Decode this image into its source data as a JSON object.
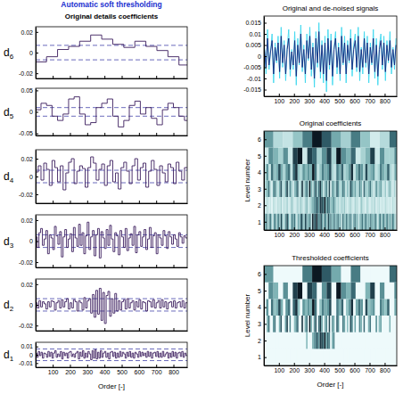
{
  "chart_data": [
    {
      "type": "step",
      "title": "Automatic soft thresholding",
      "subtitle": "Original details coefficients",
      "ylabel": "d6",
      "color": "#3b1d5e",
      "x_start": 0,
      "x_step": 64,
      "values": [
        -0.009,
        -0.004,
        0.003,
        0.006,
        0.011,
        0.017,
        0.013,
        0.008,
        0.005,
        0.011,
        0.006,
        0.002,
        -0.004,
        -0.012
      ],
      "threshold": 0.007,
      "xlim": [
        1,
        880
      ],
      "xticks": [
        100,
        200,
        300,
        400,
        500,
        600,
        700,
        800
      ],
      "ylim": [
        -0.025,
        0.025
      ],
      "yticks": [
        -0.02,
        0,
        0.02
      ],
      "tick_labels": "y"
    },
    {
      "type": "step",
      "ylabel": "d5",
      "color": "#3b1d5e",
      "x_start": 0,
      "x_step": 32,
      "values": [
        0.005,
        0.02,
        0.015,
        -0.01,
        -0.02,
        -0.005,
        0.03,
        0.035,
        -0.005,
        -0.03,
        -0.025,
        0.01,
        0.02,
        0.03,
        -0.01,
        -0.035,
        -0.02,
        0.015,
        0.025,
        -0.005,
        0.01,
        -0.015,
        -0.03,
        0.005,
        0.02,
        0.01,
        -0.01,
        -0.02
      ],
      "threshold": 0.01,
      "xlim": [
        1,
        880
      ],
      "xticks": [
        100,
        200,
        300,
        400,
        500,
        600,
        700,
        800
      ],
      "ylim": [
        -0.055,
        0.055
      ],
      "yticks": [
        -0.05,
        0,
        0.05
      ],
      "tick_labels": "y"
    },
    {
      "type": "step",
      "ylabel": "d4",
      "color": "#3b1d5e",
      "x_start": 0,
      "x_step": 16,
      "values": [
        0.005,
        0.012,
        -0.004,
        0.015,
        0.008,
        -0.01,
        0.018,
        0.01,
        -0.006,
        0.012,
        -0.015,
        0.004,
        0.016,
        0.02,
        -0.008,
        0.006,
        0.012,
        0.009,
        -0.012,
        0.01,
        0.022,
        0.015,
        -0.004,
        0.008,
        0.014,
        -0.01,
        0.012,
        0.018,
        -0.006,
        0.004,
        -0.014,
        0.01,
        0.016,
        0.006,
        -0.008,
        0.012,
        0.02,
        -0.004,
        0.01,
        0.015,
        -0.012,
        0.006,
        0.018,
        0.008,
        -0.01,
        0.012,
        0.004,
        -0.006,
        0.014,
        0.01,
        -0.008,
        0.016,
        0.006,
        -0.004,
        0.01
      ],
      "threshold": 0.007,
      "xlim": [
        1,
        880
      ],
      "xticks": [
        100,
        200,
        300,
        400,
        500,
        600,
        700,
        800
      ],
      "ylim": [
        -0.03,
        0.03
      ],
      "yticks": [
        -0.02,
        0,
        0.02
      ],
      "tick_labels": "y"
    },
    {
      "type": "step",
      "ylabel": "d3",
      "color": "#3b1d5e",
      "x_start": 0,
      "x_step": 10,
      "values": [
        0.004,
        -0.006,
        0.008,
        0.012,
        -0.004,
        0.002,
        0.01,
        -0.012,
        0.006,
        0.003,
        -0.008,
        0.014,
        0.005,
        -0.003,
        0.009,
        -0.015,
        0.004,
        0.011,
        -0.006,
        0.002,
        0.007,
        -0.01,
        0.013,
        0.003,
        -0.005,
        0.016,
        -0.004,
        0.008,
        -0.012,
        0.005,
        0.018,
        -0.008,
        0.004,
        0.01,
        -0.014,
        0.006,
        0.012,
        -0.016,
        0.009,
        0.003,
        -0.007,
        0.011,
        -0.004,
        0.015,
        0.002,
        -0.01,
        0.008,
        0.005,
        -0.013,
        0.01,
        0.004,
        -0.006,
        0.012,
        -0.009,
        0.003,
        0.007,
        -0.004,
        0.014,
        -0.011,
        0.006,
        0.009,
        -0.005,
        0.004,
        0.011,
        -0.008,
        0.002,
        0.013,
        -0.006,
        0.005,
        0.008,
        -0.012,
        0.006,
        0.003,
        -0.004,
        0.01,
        0.005,
        -0.007,
        0.009,
        0.004,
        -0.003,
        0.006,
        0.002,
        -0.005,
        0.008,
        0.004,
        -0.002,
        0.005,
        0.003
      ],
      "threshold": 0.006,
      "xlim": [
        1,
        880
      ],
      "xticks": [
        100,
        200,
        300,
        400,
        500,
        600,
        700,
        800
      ],
      "ylim": [
        -0.025,
        0.025
      ],
      "yticks": [
        -0.02,
        0,
        0.02
      ],
      "tick_labels": "y"
    },
    {
      "type": "step",
      "ylabel": "d2",
      "color": "#3b1d5e",
      "x_start": 0,
      "x_step": 10,
      "values": [
        0.002,
        -0.003,
        0.004,
        -0.002,
        0.003,
        0.001,
        -0.004,
        0.003,
        -0.002,
        0.004,
        0.003,
        -0.005,
        0.002,
        0.004,
        -0.003,
        0.005,
        -0.002,
        0.003,
        0.006,
        -0.004,
        0.002,
        -0.003,
        0.005,
        0.003,
        -0.006,
        0.004,
        0.002,
        -0.005,
        0.007,
        -0.003,
        0.004,
        0.006,
        -0.008,
        0.01,
        -0.012,
        0.014,
        -0.009,
        0.016,
        -0.015,
        0.012,
        -0.018,
        0.009,
        0.013,
        -0.011,
        0.006,
        -0.008,
        0.011,
        -0.006,
        0.004,
        -0.005,
        0.003,
        0.005,
        -0.004,
        0.006,
        -0.003,
        0.002,
        0.004,
        -0.005,
        0.003,
        -0.002,
        0.005,
        -0.004,
        0.003,
        0.002,
        -0.006,
        0.004,
        0.003,
        -0.002,
        0.005,
        -0.003,
        0.002,
        0.004,
        -0.003,
        0.005,
        -0.002,
        0.003,
        -0.004,
        0.002,
        0.003,
        -0.002,
        0.004,
        -0.003,
        0.002,
        0.003,
        -0.002,
        0.004,
        -0.003,
        0.002
      ],
      "threshold": 0.006,
      "xlim": [
        1,
        880
      ],
      "xticks": [
        100,
        200,
        300,
        400,
        500,
        600,
        700,
        800
      ],
      "ylim": [
        -0.025,
        0.025
      ],
      "yticks": [
        -0.02,
        0,
        0.02
      ],
      "tick_labels": "y"
    },
    {
      "type": "step",
      "ylabel": "d1",
      "xlabel": "Order [-]",
      "color": "#3b1d5e",
      "x_start": 0,
      "x_step": 8,
      "values": [
        0.002,
        -0.003,
        0.004,
        -0.001,
        0.003,
        -0.004,
        0.002,
        0.001,
        -0.003,
        0.004,
        -0.002,
        0.003,
        -0.004,
        0.002,
        0.005,
        -0.003,
        0.001,
        -0.002,
        0.004,
        -0.005,
        0.003,
        -0.001,
        0.002,
        -0.004,
        0.003,
        0.004,
        -0.002,
        0.001,
        -0.003,
        0.002,
        0.004,
        -0.005,
        0.003,
        -0.002,
        0.005,
        -0.004,
        0.002,
        -0.003,
        0.004,
        0.001,
        -0.006,
        0.005,
        -0.004,
        0.006,
        -0.005,
        0.003,
        -0.004,
        0.005,
        -0.003,
        0.002,
        0.004,
        -0.003,
        0.002,
        -0.005,
        0.003,
        0.004,
        -0.002,
        0.003,
        -0.004,
        0.002,
        -0.003,
        0.004,
        -0.002,
        0.003,
        0.001,
        -0.004,
        0.003,
        -0.002,
        0.004,
        -0.003,
        0.002,
        -0.004,
        0.003,
        0.001,
        -0.003,
        0.004,
        -0.002,
        0.003,
        -0.001,
        0.002,
        -0.003,
        0.004,
        -0.002,
        0.003,
        -0.004,
        0.002,
        0.003,
        -0.002,
        0.004,
        -0.003,
        0.002,
        -0.003,
        0.004,
        -0.002,
        0.001,
        0.003,
        -0.004,
        0.002,
        -0.003,
        0.004,
        -0.002,
        0.003,
        -0.004,
        0.002,
        0.003,
        -0.002,
        0.004,
        -0.003,
        0.002,
        -0.001
      ],
      "threshold": 0.007,
      "xlim": [
        1,
        880
      ],
      "xticks": [
        100,
        200,
        300,
        400,
        500,
        600,
        700,
        800
      ],
      "ylim": [
        -0.015,
        0.015
      ],
      "yticks": [
        -0.01,
        0,
        0.01
      ]
    },
    {
      "type": "line",
      "title": "Original and de-noised signals",
      "x": [
        5,
        15,
        25,
        35,
        45,
        55,
        65,
        75,
        85,
        95,
        105,
        115,
        125,
        135,
        145,
        155,
        165,
        175,
        185,
        195,
        205,
        215,
        225,
        235,
        245,
        255,
        265,
        275,
        285,
        295,
        305,
        315,
        325,
        335,
        345,
        355,
        365,
        375,
        385,
        395,
        405,
        415,
        425,
        435,
        445,
        455,
        465,
        475,
        485,
        495,
        505,
        515,
        525,
        535,
        545,
        555,
        565,
        575,
        585,
        595,
        605,
        615,
        625,
        635,
        645,
        655,
        665,
        675,
        685,
        695,
        705,
        715,
        725,
        735,
        745,
        755,
        765,
        775,
        785,
        795,
        805,
        815,
        825,
        835,
        845,
        855,
        865,
        875
      ],
      "series": [
        {
          "color": "#3fd8ee",
          "values": [
            0.004,
            -0.008,
            0.012,
            -0.006,
            0.002,
            0.01,
            -0.012,
            0.006,
            -0.003,
            0.009,
            -0.01,
            0.013,
            -0.005,
            0.007,
            -0.011,
            0.004,
            0.012,
            -0.009,
            0.003,
            -0.006,
            0.011,
            -0.013,
            0.008,
            -0.004,
            0.014,
            -0.007,
            0.005,
            -0.012,
            0.01,
            -0.002,
            0.013,
            -0.009,
            0.006,
            -0.014,
            0.011,
            -0.005,
            0.015,
            -0.01,
            0.007,
            -0.012,
            0.009,
            -0.016,
            0.012,
            -0.006,
            0.01,
            -0.013,
            0.004,
            0.011,
            -0.008,
            0.006,
            -0.011,
            0.013,
            -0.004,
            0.009,
            -0.012,
            0.007,
            -0.003,
            0.012,
            -0.009,
            0.005,
            0.01,
            -0.007,
            0.013,
            -0.011,
            0.004,
            -0.008,
            0.011,
            -0.005,
            0.009,
            -0.012,
            0.006,
            -0.004,
            0.012,
            -0.01,
            0.008,
            -0.013,
            0.005,
            0.01,
            -0.006,
            0.009,
            -0.011,
            0.007,
            -0.003,
            0.011,
            -0.008,
            0.004,
            -0.006,
            0.008
          ]
        },
        {
          "color": "#14237a",
          "values": [
            0.003,
            -0.005,
            0.008,
            -0.004,
            0.002,
            0.007,
            -0.008,
            0.004,
            -0.002,
            0.006,
            -0.007,
            0.009,
            -0.003,
            0.005,
            -0.008,
            0.003,
            0.008,
            -0.006,
            0.002,
            -0.004,
            0.007,
            -0.009,
            0.005,
            -0.003,
            0.01,
            -0.005,
            0.003,
            -0.008,
            0.007,
            -0.001,
            0.009,
            -0.006,
            0.004,
            -0.01,
            0.008,
            -0.003,
            0.011,
            -0.007,
            0.005,
            -0.008,
            0.006,
            -0.011,
            0.008,
            -0.004,
            0.007,
            -0.009,
            0.003,
            0.008,
            -0.005,
            0.004,
            -0.008,
            0.009,
            -0.003,
            0.006,
            -0.008,
            0.005,
            -0.002,
            0.008,
            -0.006,
            0.003,
            0.007,
            -0.005,
            0.009,
            -0.007,
            0.003,
            -0.005,
            0.008,
            -0.003,
            0.006,
            -0.008,
            0.004,
            -0.003,
            0.008,
            -0.007,
            0.005,
            -0.009,
            0.003,
            0.007,
            -0.004,
            0.006,
            -0.007,
            0.005,
            -0.002,
            0.007,
            -0.005,
            0.003,
            -0.004,
            0.005
          ]
        }
      ],
      "xlim": [
        1,
        880
      ],
      "xticks": [
        100,
        200,
        300,
        400,
        500,
        600,
        700,
        800
      ],
      "ylim": [
        -0.018,
        0.018
      ],
      "yticks": [
        -0.015,
        -0.01,
        -0.005,
        0,
        0.005,
        0.01,
        0.015
      ]
    },
    {
      "type": "heatmap",
      "title": "Original coefficients",
      "ylabel": "Level number",
      "xlim": [
        1,
        880
      ],
      "xticks": [
        100,
        200,
        300,
        400,
        500,
        600,
        700,
        800
      ],
      "ylim": [
        0.5,
        6.5
      ],
      "yticks": [
        1,
        2,
        3,
        4,
        5,
        6
      ]
    },
    {
      "type": "heatmap",
      "title": "Thresholded coefficients",
      "ylabel": "Level number",
      "xlabel": "Order [-]",
      "xlim": [
        1,
        880
      ],
      "xticks": [
        100,
        200,
        300,
        400,
        500,
        600,
        700,
        800
      ],
      "ylim": [
        0.5,
        6.5
      ],
      "yticks": [
        1,
        2,
        3,
        4,
        5,
        6
      ]
    }
  ]
}
